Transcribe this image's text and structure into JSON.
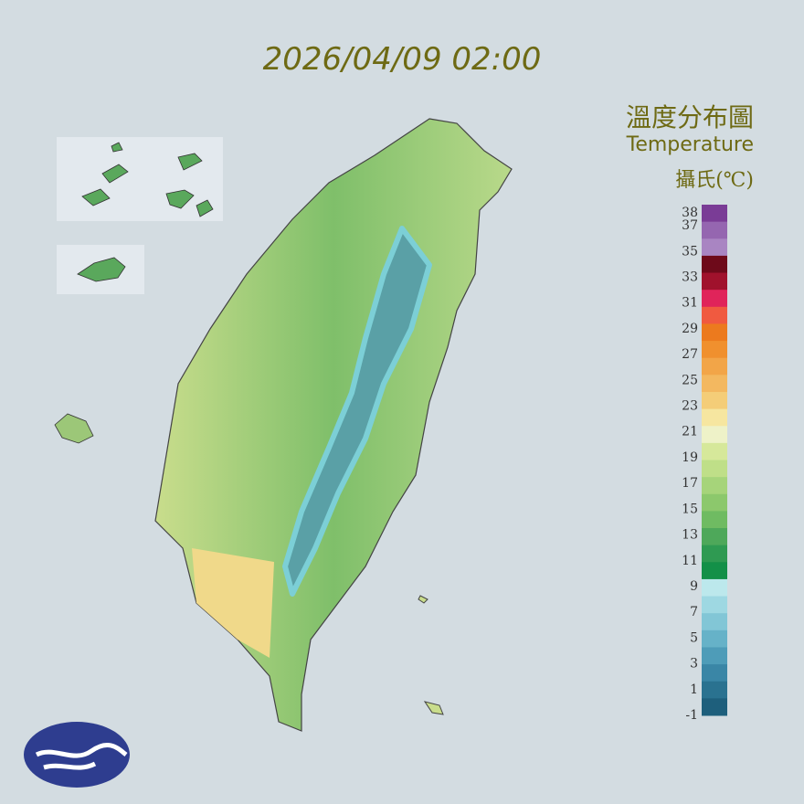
{
  "header": {
    "timestamp": "2026/04/09 02:00"
  },
  "legend": {
    "title": "溫度分布圖",
    "subtitle": "Temperature",
    "unit": "攝氏(℃)",
    "ticks": [
      38,
      37,
      35,
      33,
      31,
      29,
      27,
      25,
      23,
      21,
      19,
      17,
      15,
      13,
      11,
      9,
      7,
      5,
      3,
      1,
      -1
    ],
    "colors": [
      "#7a3c96",
      "#9566b0",
      "#a985c2",
      "#6e0a1a",
      "#a0122c",
      "#e0245a",
      "#f05a40",
      "#ec7a1e",
      "#f0902e",
      "#f2a548",
      "#f3b860",
      "#f4cd78",
      "#f6e6a0",
      "#eef2c8",
      "#d6e89a",
      "#bfdf88",
      "#a6d47a",
      "#8cc86c",
      "#6fbb62",
      "#4ea85a",
      "#2f9a52",
      "#139048",
      "#bce8ec",
      "#9ed8e2",
      "#82c6d6",
      "#66b2c8",
      "#4e9cb8",
      "#3a86a6",
      "#2a7290",
      "#1e5f7c"
    ]
  }
}
